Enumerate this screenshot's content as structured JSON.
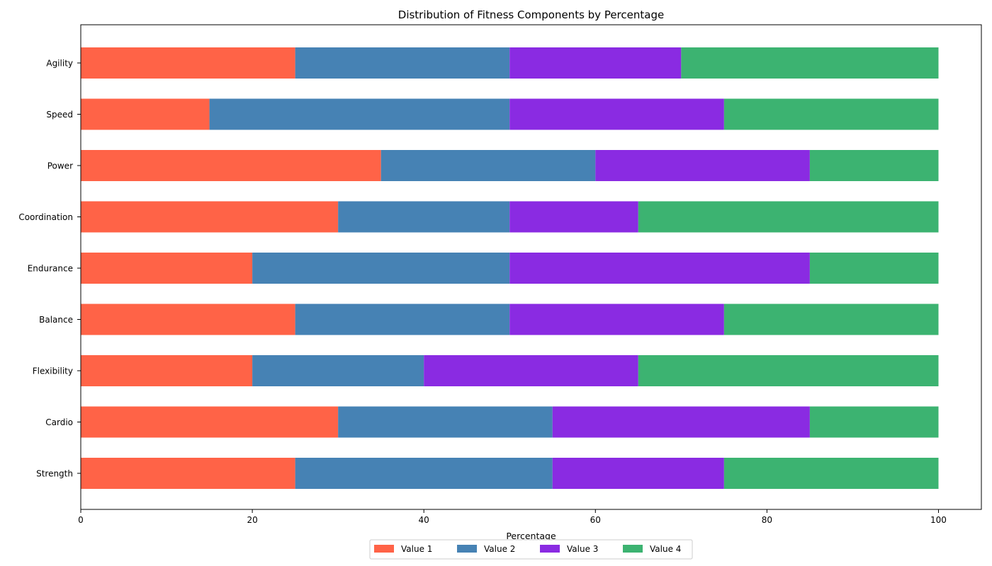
{
  "chart_data": {
    "type": "bar",
    "orientation": "horizontal",
    "stacked": true,
    "title": "Distribution of Fitness Components by Percentage",
    "xlabel": "Percentage",
    "ylabel": "",
    "xlim": [
      0,
      105
    ],
    "xticks": [
      0,
      20,
      40,
      60,
      80,
      100
    ],
    "grid": false,
    "legend_position": "bottom-center",
    "categories": [
      "Strength",
      "Cardio",
      "Flexibility",
      "Balance",
      "Endurance",
      "Coordination",
      "Power",
      "Speed",
      "Agility"
    ],
    "series": [
      {
        "name": "Value 1",
        "color": "#FF6347",
        "values": [
          25,
          30,
          20,
          25,
          20,
          30,
          35,
          15,
          25
        ]
      },
      {
        "name": "Value 2",
        "color": "#4682B4",
        "values": [
          30,
          25,
          20,
          25,
          30,
          20,
          25,
          35,
          25
        ]
      },
      {
        "name": "Value 3",
        "color": "#8A2BE2",
        "values": [
          20,
          30,
          25,
          25,
          35,
          15,
          25,
          25,
          20
        ]
      },
      {
        "name": "Value 4",
        "color": "#3CB371",
        "values": [
          25,
          15,
          35,
          25,
          15,
          35,
          15,
          25,
          30
        ]
      }
    ]
  }
}
